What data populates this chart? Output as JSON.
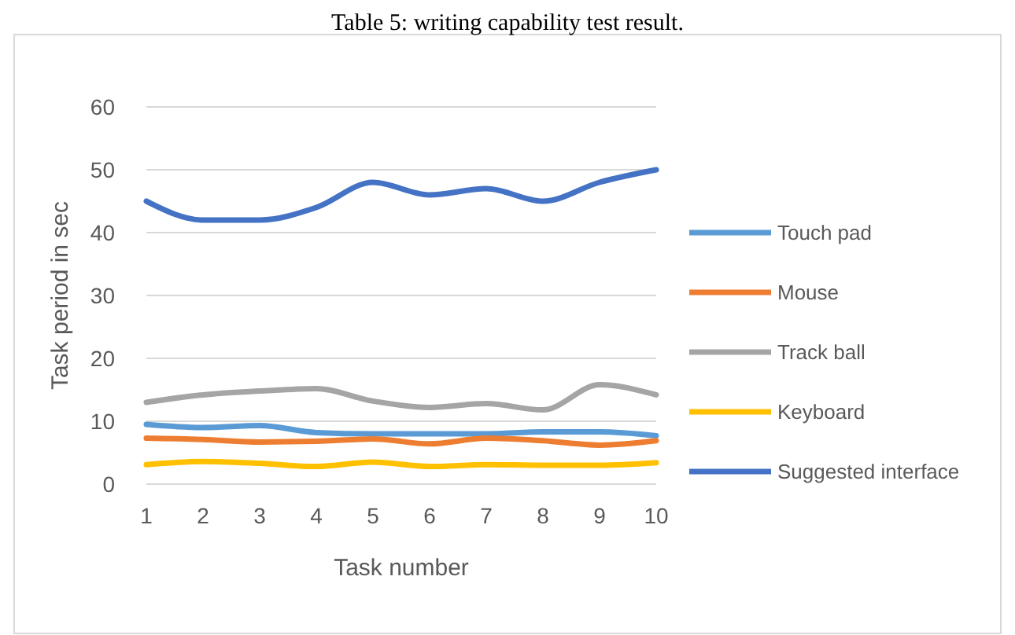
{
  "chart_data": {
    "type": "line",
    "title": "Table 5: writing capability test result.",
    "xlabel": "Task number",
    "ylabel": "Task period in sec",
    "x": [
      1,
      2,
      3,
      4,
      5,
      6,
      7,
      8,
      9,
      10
    ],
    "xlim": [
      1,
      10
    ],
    "xticks": [
      1,
      2,
      3,
      4,
      5,
      6,
      7,
      8,
      9,
      10
    ],
    "ylim": [
      0,
      60
    ],
    "yticks": [
      0,
      10,
      20,
      30,
      40,
      50,
      60
    ],
    "grid": "y",
    "legend": "right",
    "marker": "none",
    "line_style": "solid",
    "series": [
      {
        "name": "Touch pad",
        "color": "#5b9bd5",
        "values": [
          9.5,
          9,
          9.3,
          8.2,
          8,
          8,
          8,
          8.3,
          8.3,
          7.7
        ]
      },
      {
        "name": "Mouse",
        "color": "#ed7d31",
        "values": [
          7.3,
          7.1,
          6.7,
          6.8,
          7.2,
          6.4,
          7.3,
          6.9,
          6.2,
          6.9
        ]
      },
      {
        "name": "Track ball",
        "color": "#a5a5a5",
        "values": [
          13,
          14.2,
          14.8,
          15.2,
          13.2,
          12.2,
          12.8,
          11.8,
          15.8,
          14.2
        ]
      },
      {
        "name": "Keyboard",
        "color": "#ffc000",
        "values": [
          3.1,
          3.6,
          3.3,
          2.8,
          3.5,
          2.8,
          3.1,
          3,
          3,
          3.4
        ]
      },
      {
        "name": "Suggested interface",
        "color": "#4472c4",
        "values": [
          45,
          42,
          42,
          44,
          48,
          46,
          47,
          45,
          48,
          50
        ]
      }
    ]
  }
}
